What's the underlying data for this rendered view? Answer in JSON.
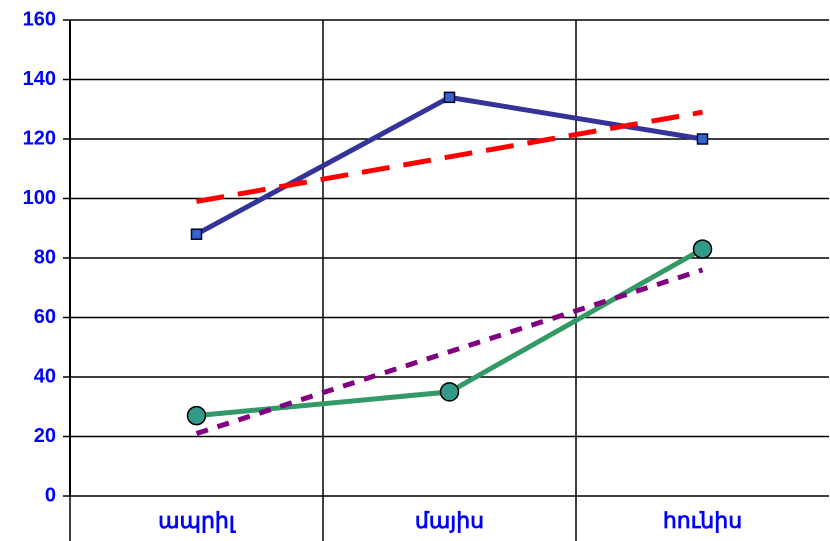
{
  "chart_data": {
    "type": "line",
    "categories": [
      "ապրիլ",
      "մայիս",
      "հունիս"
    ],
    "series": [
      {
        "color": "#333399",
        "dash": "solid",
        "marker": "square",
        "marker_color": "#3366cc",
        "values": [
          88,
          134,
          120
        ]
      },
      {
        "color": "#ff0000",
        "dash": "dashed",
        "marker": "none",
        "values": [
          99,
          114,
          129
        ]
      },
      {
        "color": "#339966",
        "dash": "solid",
        "marker": "circle",
        "marker_color": "#339988",
        "values": [
          27,
          35,
          83
        ]
      },
      {
        "color": "#800080",
        "dash": "dotted",
        "marker": "none",
        "values": [
          21,
          48.5,
          76
        ]
      }
    ],
    "ylim": [
      0,
      160
    ],
    "yticks": [
      0,
      20,
      40,
      60,
      80,
      100,
      120,
      140,
      160
    ],
    "grid": true,
    "label_color": "#0000ff"
  }
}
